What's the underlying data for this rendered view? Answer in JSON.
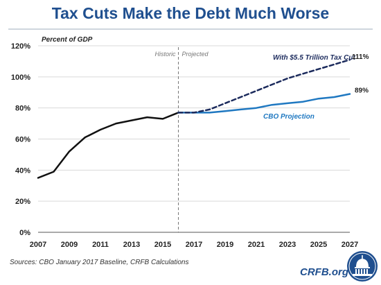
{
  "title": "Tax Cuts Make the Debt Much Worse",
  "source_note": "Sources: CBO January 2017 Baseline, CRFB Calculations",
  "brand": "CRFB.org",
  "colors": {
    "title": "#1f4f8f",
    "historic_line": "#111111",
    "cbo_line": "#1f78c1",
    "tax_cut_line": "#1b2a5c",
    "divider": "#777777",
    "grid": "#d9d9d9"
  },
  "chart_data": {
    "type": "line",
    "ylabel": "Percent of GDP",
    "ylim": [
      0,
      120
    ],
    "xlim": [
      2007,
      2027
    ],
    "grid": "horizontal",
    "y_ticks": [
      "0%",
      "20%",
      "40%",
      "60%",
      "80%",
      "100%",
      "120%"
    ],
    "x_ticks": [
      "2007",
      "2009",
      "2011",
      "2013",
      "2015",
      "2017",
      "2019",
      "2021",
      "2023",
      "2025",
      "2027"
    ],
    "divider": {
      "x": 2016,
      "left_label": "Historic",
      "right_label": "Projected"
    },
    "series": [
      {
        "name": "",
        "style": "solid",
        "color": "#111111",
        "points": [
          [
            2007,
            35
          ],
          [
            2008,
            39
          ],
          [
            2009,
            52
          ],
          [
            2010,
            61
          ],
          [
            2011,
            66
          ],
          [
            2012,
            70
          ],
          [
            2013,
            72
          ],
          [
            2014,
            74
          ],
          [
            2015,
            73
          ],
          [
            2016,
            77
          ]
        ]
      },
      {
        "name": "CBO Projection",
        "style": "solid",
        "color": "#1f78c1",
        "end_label": "89%",
        "points": [
          [
            2016,
            77
          ],
          [
            2017,
            77
          ],
          [
            2018,
            77
          ],
          [
            2019,
            78
          ],
          [
            2020,
            79
          ],
          [
            2021,
            80
          ],
          [
            2022,
            82
          ],
          [
            2023,
            83
          ],
          [
            2024,
            84
          ],
          [
            2025,
            86
          ],
          [
            2026,
            87
          ],
          [
            2027,
            89
          ]
        ]
      },
      {
        "name": "With $5.5 Trillion Tax Cut",
        "style": "dashed",
        "color": "#1b2a5c",
        "end_label": "111%",
        "points": [
          [
            2016,
            77
          ],
          [
            2017,
            77
          ],
          [
            2018,
            79
          ],
          [
            2019,
            83
          ],
          [
            2020,
            87
          ],
          [
            2021,
            91
          ],
          [
            2022,
            95
          ],
          [
            2023,
            99
          ],
          [
            2024,
            102
          ],
          [
            2025,
            105
          ],
          [
            2026,
            108
          ],
          [
            2027,
            111
          ]
        ]
      }
    ]
  }
}
